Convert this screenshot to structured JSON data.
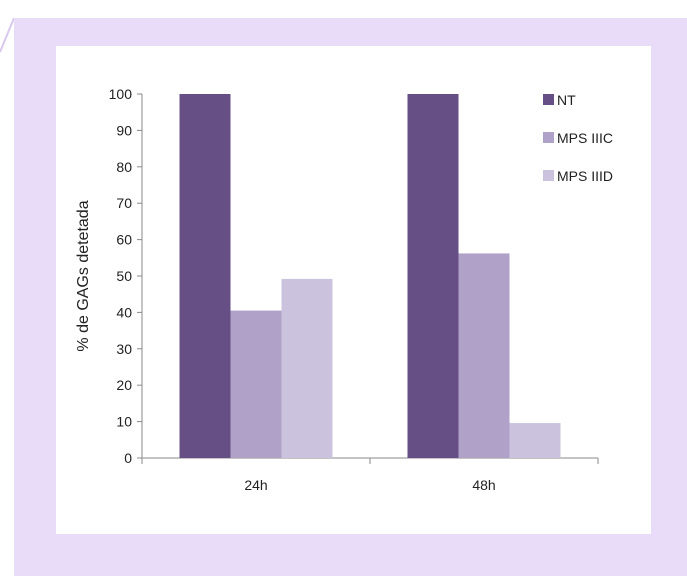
{
  "chart_data": {
    "type": "bar",
    "categories": [
      "24h",
      "48h"
    ],
    "series": [
      {
        "name": "NT",
        "values": [
          100,
          100
        ],
        "color": "#664f85"
      },
      {
        "name": "MPS IIIC",
        "values": [
          40.5,
          56.2
        ],
        "color": "#b0a1c9"
      },
      {
        "name": "MPS IIID",
        "values": [
          49.2,
          9.6
        ],
        "color": "#cbc3dd"
      }
    ],
    "title": "",
    "xlabel": "",
    "ylabel": "% de GAGs detetada",
    "ylim": [
      0,
      100
    ],
    "yticks": [
      0,
      10,
      20,
      30,
      40,
      50,
      60,
      70,
      80,
      90,
      100
    ],
    "grid": false,
    "legend_position": "right"
  },
  "colors": {
    "panel_background": "#e8dcf9",
    "card_background": "#ffffff"
  }
}
